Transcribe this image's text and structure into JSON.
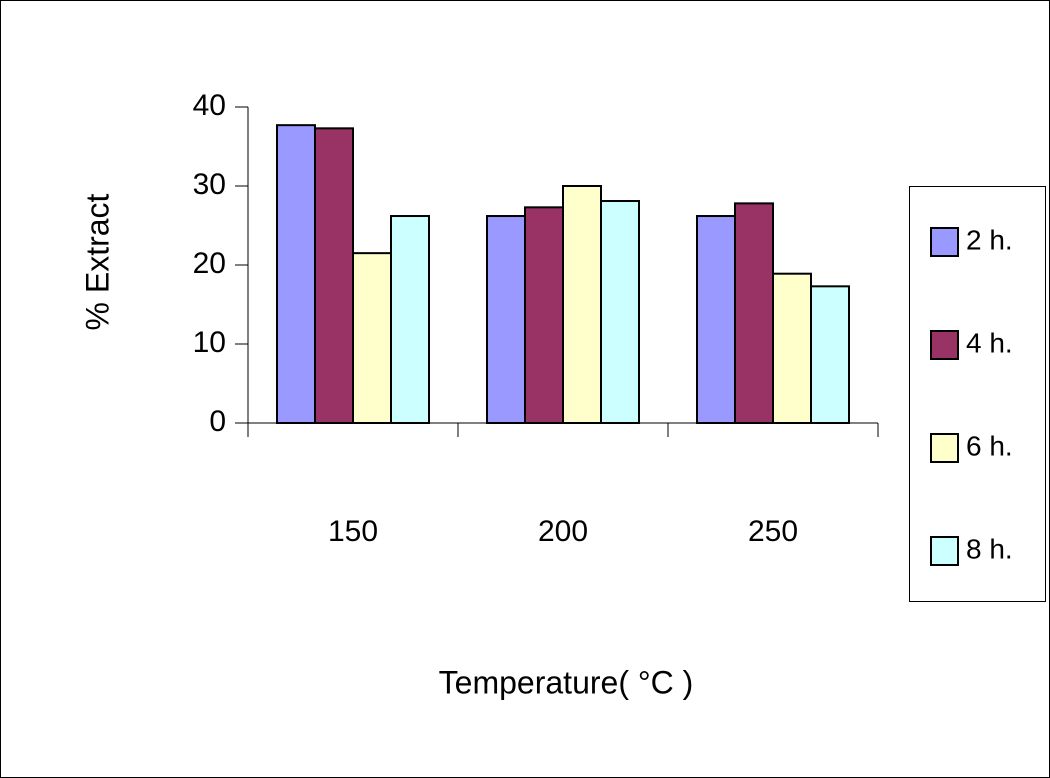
{
  "chart_data": {
    "type": "bar",
    "x_label": "Temperature( °C )",
    "y_label": "% Extract",
    "categories": [
      "150",
      "200",
      "250"
    ],
    "series": [
      {
        "name": "2 h.",
        "color": "#9999ff",
        "values": [
          37.7,
          26.2,
          26.2
        ]
      },
      {
        "name": "4 h.",
        "color": "#993366",
        "values": [
          37.3,
          27.3,
          27.8
        ]
      },
      {
        "name": "6 h.",
        "color": "#ffffcc",
        "values": [
          21.5,
          30,
          18.9
        ]
      },
      {
        "name": "8 h.",
        "color": "#ccffff",
        "values": [
          26.2,
          28.1,
          17.3
        ]
      }
    ],
    "ylim": [
      0,
      40
    ],
    "yticks": [
      0,
      10,
      20,
      30,
      40
    ],
    "grid": false,
    "legend": "right"
  }
}
